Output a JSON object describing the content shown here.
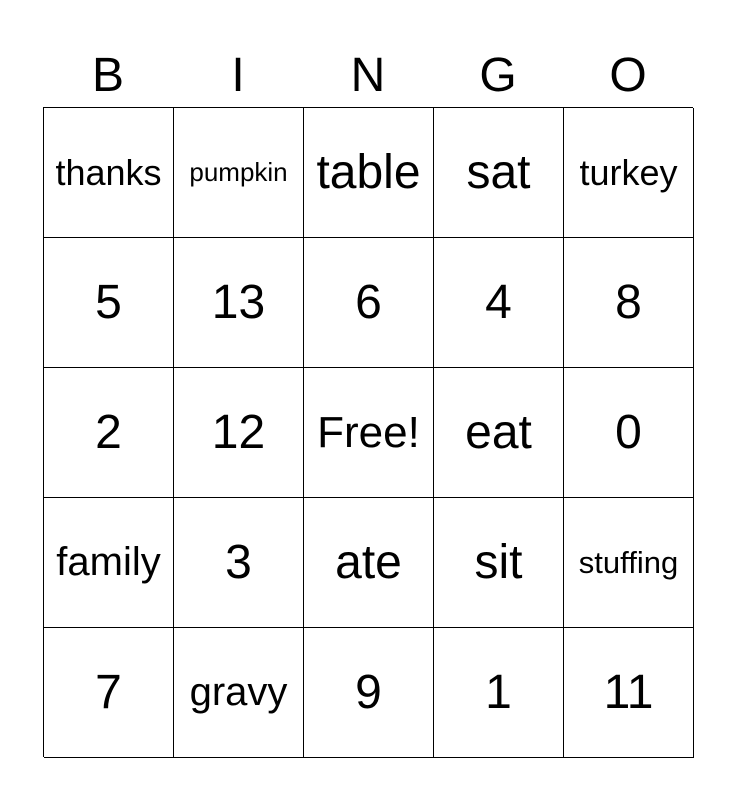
{
  "header": [
    "B",
    "I",
    "N",
    "G",
    "O"
  ],
  "cells": [
    [
      "thanks",
      "pumpkin",
      "table",
      "sat",
      "turkey"
    ],
    [
      "5",
      "13",
      "6",
      "4",
      "8"
    ],
    [
      "2",
      "12",
      "Free!",
      "eat",
      "0"
    ],
    [
      "family",
      "3",
      "ate",
      "sit",
      "stuffing"
    ],
    [
      "7",
      "gravy",
      "9",
      "1",
      "11"
    ]
  ]
}
